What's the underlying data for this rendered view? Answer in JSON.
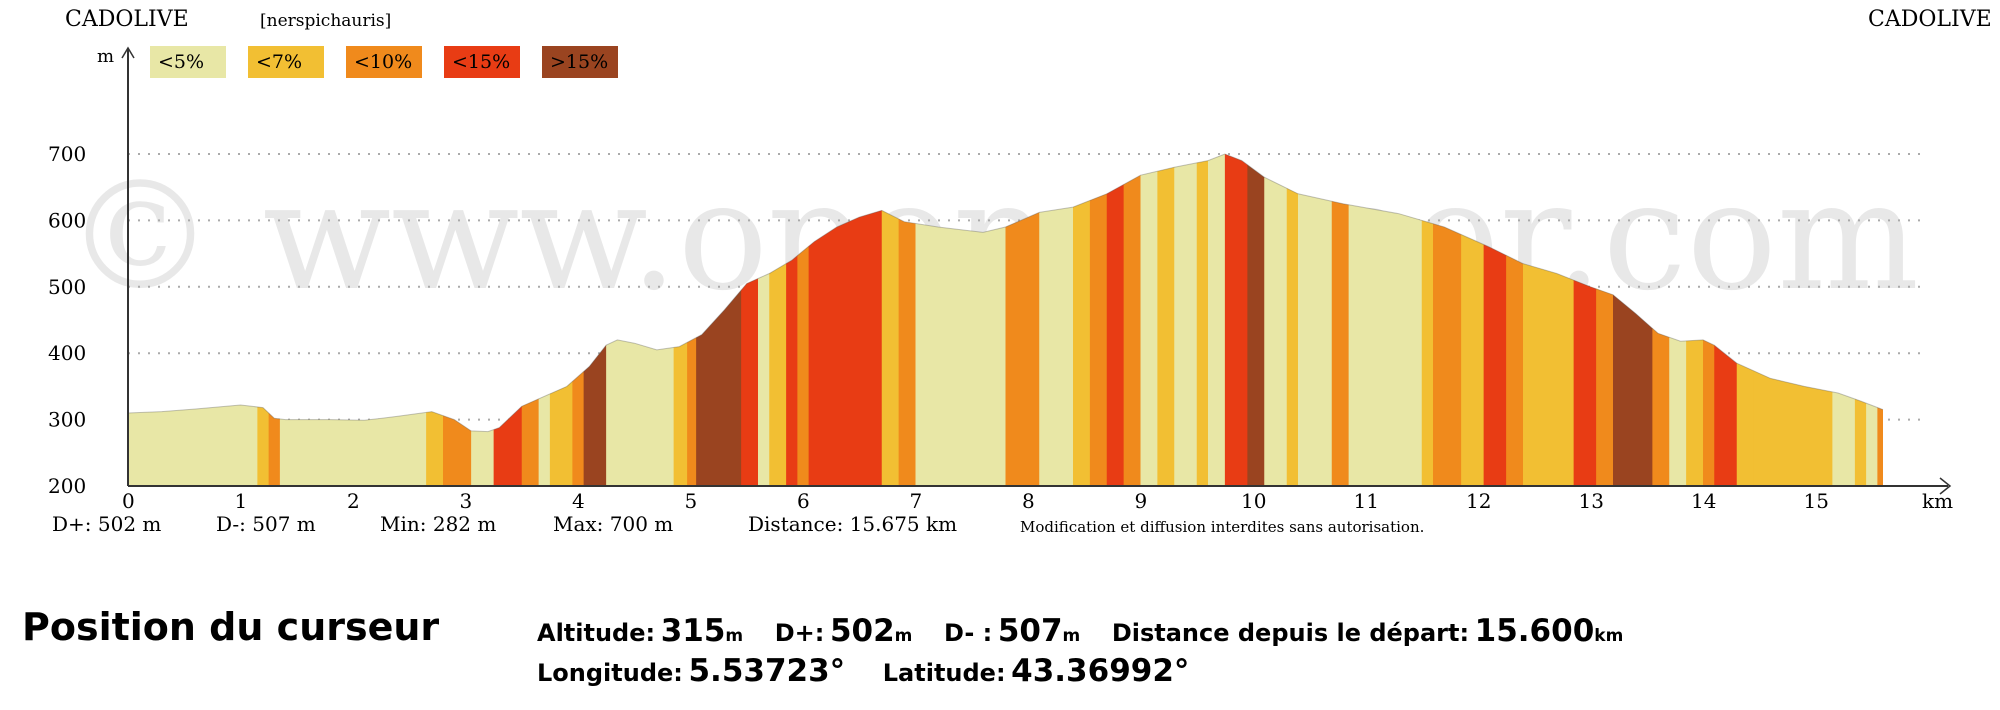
{
  "header": {
    "left_title": "CADOLIVE",
    "right_title": "CADOLIVE",
    "tag": "[nerspichauris]",
    "watermark": "© www.openrunner.com"
  },
  "stats": {
    "dplus": "D+: 502 m",
    "dminus": "D-: 507 m",
    "min": "Min: 282 m",
    "max": "Max: 700 m",
    "distance": "Distance: 15.675 km",
    "notice": "Modification et diffusion interdites sans autorisation."
  },
  "cursor": {
    "title": "Position du curseur",
    "altitude_label": "Altitude:",
    "altitude_value": "315",
    "altitude_unit": "m",
    "dplus_label": "D+:",
    "dplus_value": "502",
    "dplus_unit": "m",
    "dminus_label": "D- :",
    "dminus_value": "507",
    "dminus_unit": "m",
    "distance_label": "Distance depuis le départ:",
    "distance_value": "15.600",
    "distance_unit": "km",
    "longitude_label": "Longitude:",
    "longitude_value": "5.53723°",
    "latitude_label": "Latitude:",
    "latitude_value": "43.36992°"
  },
  "chart_data": {
    "type": "area",
    "title": "",
    "xlabel": "km",
    "ylabel": "m",
    "xlim": [
      0,
      16
    ],
    "ylim": [
      200,
      700
    ],
    "x_ticks": [
      0,
      1,
      2,
      3,
      4,
      5,
      6,
      7,
      8,
      9,
      10,
      11,
      12,
      13,
      14,
      15
    ],
    "y_ticks": [
      200,
      300,
      400,
      500,
      600,
      700
    ],
    "grid": "horizontal dotted at 300, 400, 500, 600, 700",
    "legend": {
      "placement": "top-left",
      "entries": [
        {
          "label": "<5%",
          "color": "#e8e7a6"
        },
        {
          "label": "<7%",
          "color": "#f2bf33"
        },
        {
          "label": "<10%",
          "color": "#f08a1c"
        },
        {
          "label": "<15%",
          "color": "#e83c14"
        },
        {
          "label": ">15%",
          "color": "#9a4420"
        }
      ]
    },
    "profile": [
      {
        "x": 0.0,
        "y": 310
      },
      {
        "x": 0.3,
        "y": 312
      },
      {
        "x": 0.6,
        "y": 316
      },
      {
        "x": 1.0,
        "y": 322
      },
      {
        "x": 1.2,
        "y": 318
      },
      {
        "x": 1.3,
        "y": 302
      },
      {
        "x": 1.4,
        "y": 300
      },
      {
        "x": 1.8,
        "y": 300
      },
      {
        "x": 2.1,
        "y": 299
      },
      {
        "x": 2.4,
        "y": 305
      },
      {
        "x": 2.7,
        "y": 312
      },
      {
        "x": 2.9,
        "y": 300
      },
      {
        "x": 3.05,
        "y": 283
      },
      {
        "x": 3.2,
        "y": 282
      },
      {
        "x": 3.3,
        "y": 288
      },
      {
        "x": 3.5,
        "y": 320
      },
      {
        "x": 3.9,
        "y": 350
      },
      {
        "x": 4.1,
        "y": 380
      },
      {
        "x": 4.25,
        "y": 412
      },
      {
        "x": 4.35,
        "y": 420
      },
      {
        "x": 4.5,
        "y": 415
      },
      {
        "x": 4.7,
        "y": 405
      },
      {
        "x": 4.9,
        "y": 410
      },
      {
        "x": 5.1,
        "y": 428
      },
      {
        "x": 5.3,
        "y": 465
      },
      {
        "x": 5.5,
        "y": 505
      },
      {
        "x": 5.7,
        "y": 520
      },
      {
        "x": 5.9,
        "y": 540
      },
      {
        "x": 6.1,
        "y": 568
      },
      {
        "x": 6.3,
        "y": 590
      },
      {
        "x": 6.5,
        "y": 605
      },
      {
        "x": 6.7,
        "y": 615
      },
      {
        "x": 6.9,
        "y": 598
      },
      {
        "x": 7.2,
        "y": 590
      },
      {
        "x": 7.6,
        "y": 582
      },
      {
        "x": 7.8,
        "y": 590
      },
      {
        "x": 8.1,
        "y": 612
      },
      {
        "x": 8.4,
        "y": 620
      },
      {
        "x": 8.7,
        "y": 640
      },
      {
        "x": 9.0,
        "y": 668
      },
      {
        "x": 9.3,
        "y": 680
      },
      {
        "x": 9.6,
        "y": 690
      },
      {
        "x": 9.75,
        "y": 700
      },
      {
        "x": 9.9,
        "y": 690
      },
      {
        "x": 10.1,
        "y": 665
      },
      {
        "x": 10.4,
        "y": 640
      },
      {
        "x": 10.8,
        "y": 625
      },
      {
        "x": 11.3,
        "y": 610
      },
      {
        "x": 11.7,
        "y": 590
      },
      {
        "x": 12.1,
        "y": 560
      },
      {
        "x": 12.4,
        "y": 535
      },
      {
        "x": 12.7,
        "y": 520
      },
      {
        "x": 13.0,
        "y": 500
      },
      {
        "x": 13.2,
        "y": 488
      },
      {
        "x": 13.4,
        "y": 460
      },
      {
        "x": 13.6,
        "y": 430
      },
      {
        "x": 13.8,
        "y": 418
      },
      {
        "x": 14.0,
        "y": 420
      },
      {
        "x": 14.1,
        "y": 412
      },
      {
        "x": 14.3,
        "y": 385
      },
      {
        "x": 14.6,
        "y": 362
      },
      {
        "x": 14.9,
        "y": 350
      },
      {
        "x": 15.2,
        "y": 340
      },
      {
        "x": 15.4,
        "y": 328
      },
      {
        "x": 15.6,
        "y": 315
      }
    ],
    "gradient_bands": [
      [
        0.0,
        1.15,
        0
      ],
      [
        1.15,
        1.25,
        1
      ],
      [
        1.25,
        1.35,
        2
      ],
      [
        1.35,
        2.65,
        0
      ],
      [
        2.65,
        2.8,
        1
      ],
      [
        2.8,
        3.05,
        2
      ],
      [
        3.05,
        3.25,
        0
      ],
      [
        3.25,
        3.5,
        3
      ],
      [
        3.5,
        3.65,
        2
      ],
      [
        3.65,
        3.75,
        0
      ],
      [
        3.75,
        3.95,
        1
      ],
      [
        3.95,
        4.05,
        2
      ],
      [
        4.05,
        4.25,
        4
      ],
      [
        4.25,
        4.85,
        0
      ],
      [
        4.85,
        4.97,
        1
      ],
      [
        4.97,
        5.05,
        2
      ],
      [
        5.05,
        5.45,
        4
      ],
      [
        5.45,
        5.6,
        3
      ],
      [
        5.6,
        5.7,
        0
      ],
      [
        5.7,
        5.85,
        1
      ],
      [
        5.85,
        5.95,
        3
      ],
      [
        5.95,
        6.05,
        2
      ],
      [
        6.05,
        6.7,
        3
      ],
      [
        6.7,
        6.85,
        1
      ],
      [
        6.85,
        7.0,
        2
      ],
      [
        7.0,
        7.8,
        0
      ],
      [
        7.8,
        8.1,
        2
      ],
      [
        8.1,
        8.4,
        0
      ],
      [
        8.4,
        8.55,
        1
      ],
      [
        8.55,
        8.7,
        2
      ],
      [
        8.7,
        8.85,
        3
      ],
      [
        8.85,
        9.0,
        2
      ],
      [
        9.0,
        9.15,
        0
      ],
      [
        9.15,
        9.3,
        1
      ],
      [
        9.3,
        9.5,
        0
      ],
      [
        9.5,
        9.6,
        1
      ],
      [
        9.6,
        9.75,
        0
      ],
      [
        9.75,
        9.95,
        3
      ],
      [
        9.95,
        10.1,
        4
      ],
      [
        10.1,
        10.3,
        0
      ],
      [
        10.3,
        10.4,
        1
      ],
      [
        10.4,
        10.7,
        0
      ],
      [
        10.7,
        10.85,
        2
      ],
      [
        10.85,
        11.5,
        0
      ],
      [
        11.5,
        11.6,
        1
      ],
      [
        11.6,
        11.85,
        2
      ],
      [
        11.85,
        12.05,
        1
      ],
      [
        12.05,
        12.25,
        3
      ],
      [
        12.25,
        12.4,
        2
      ],
      [
        12.4,
        12.85,
        1
      ],
      [
        12.85,
        13.05,
        3
      ],
      [
        13.05,
        13.2,
        2
      ],
      [
        13.2,
        13.55,
        4
      ],
      [
        13.55,
        13.7,
        2
      ],
      [
        13.7,
        13.85,
        0
      ],
      [
        13.85,
        14.0,
        1
      ],
      [
        14.0,
        14.1,
        2
      ],
      [
        14.1,
        14.3,
        3
      ],
      [
        14.3,
        14.45,
        1
      ],
      [
        14.45,
        15.15,
        1
      ],
      [
        15.15,
        15.35,
        0
      ],
      [
        15.35,
        15.45,
        1
      ],
      [
        15.45,
        15.55,
        0
      ],
      [
        15.55,
        15.6,
        2
      ]
    ]
  }
}
